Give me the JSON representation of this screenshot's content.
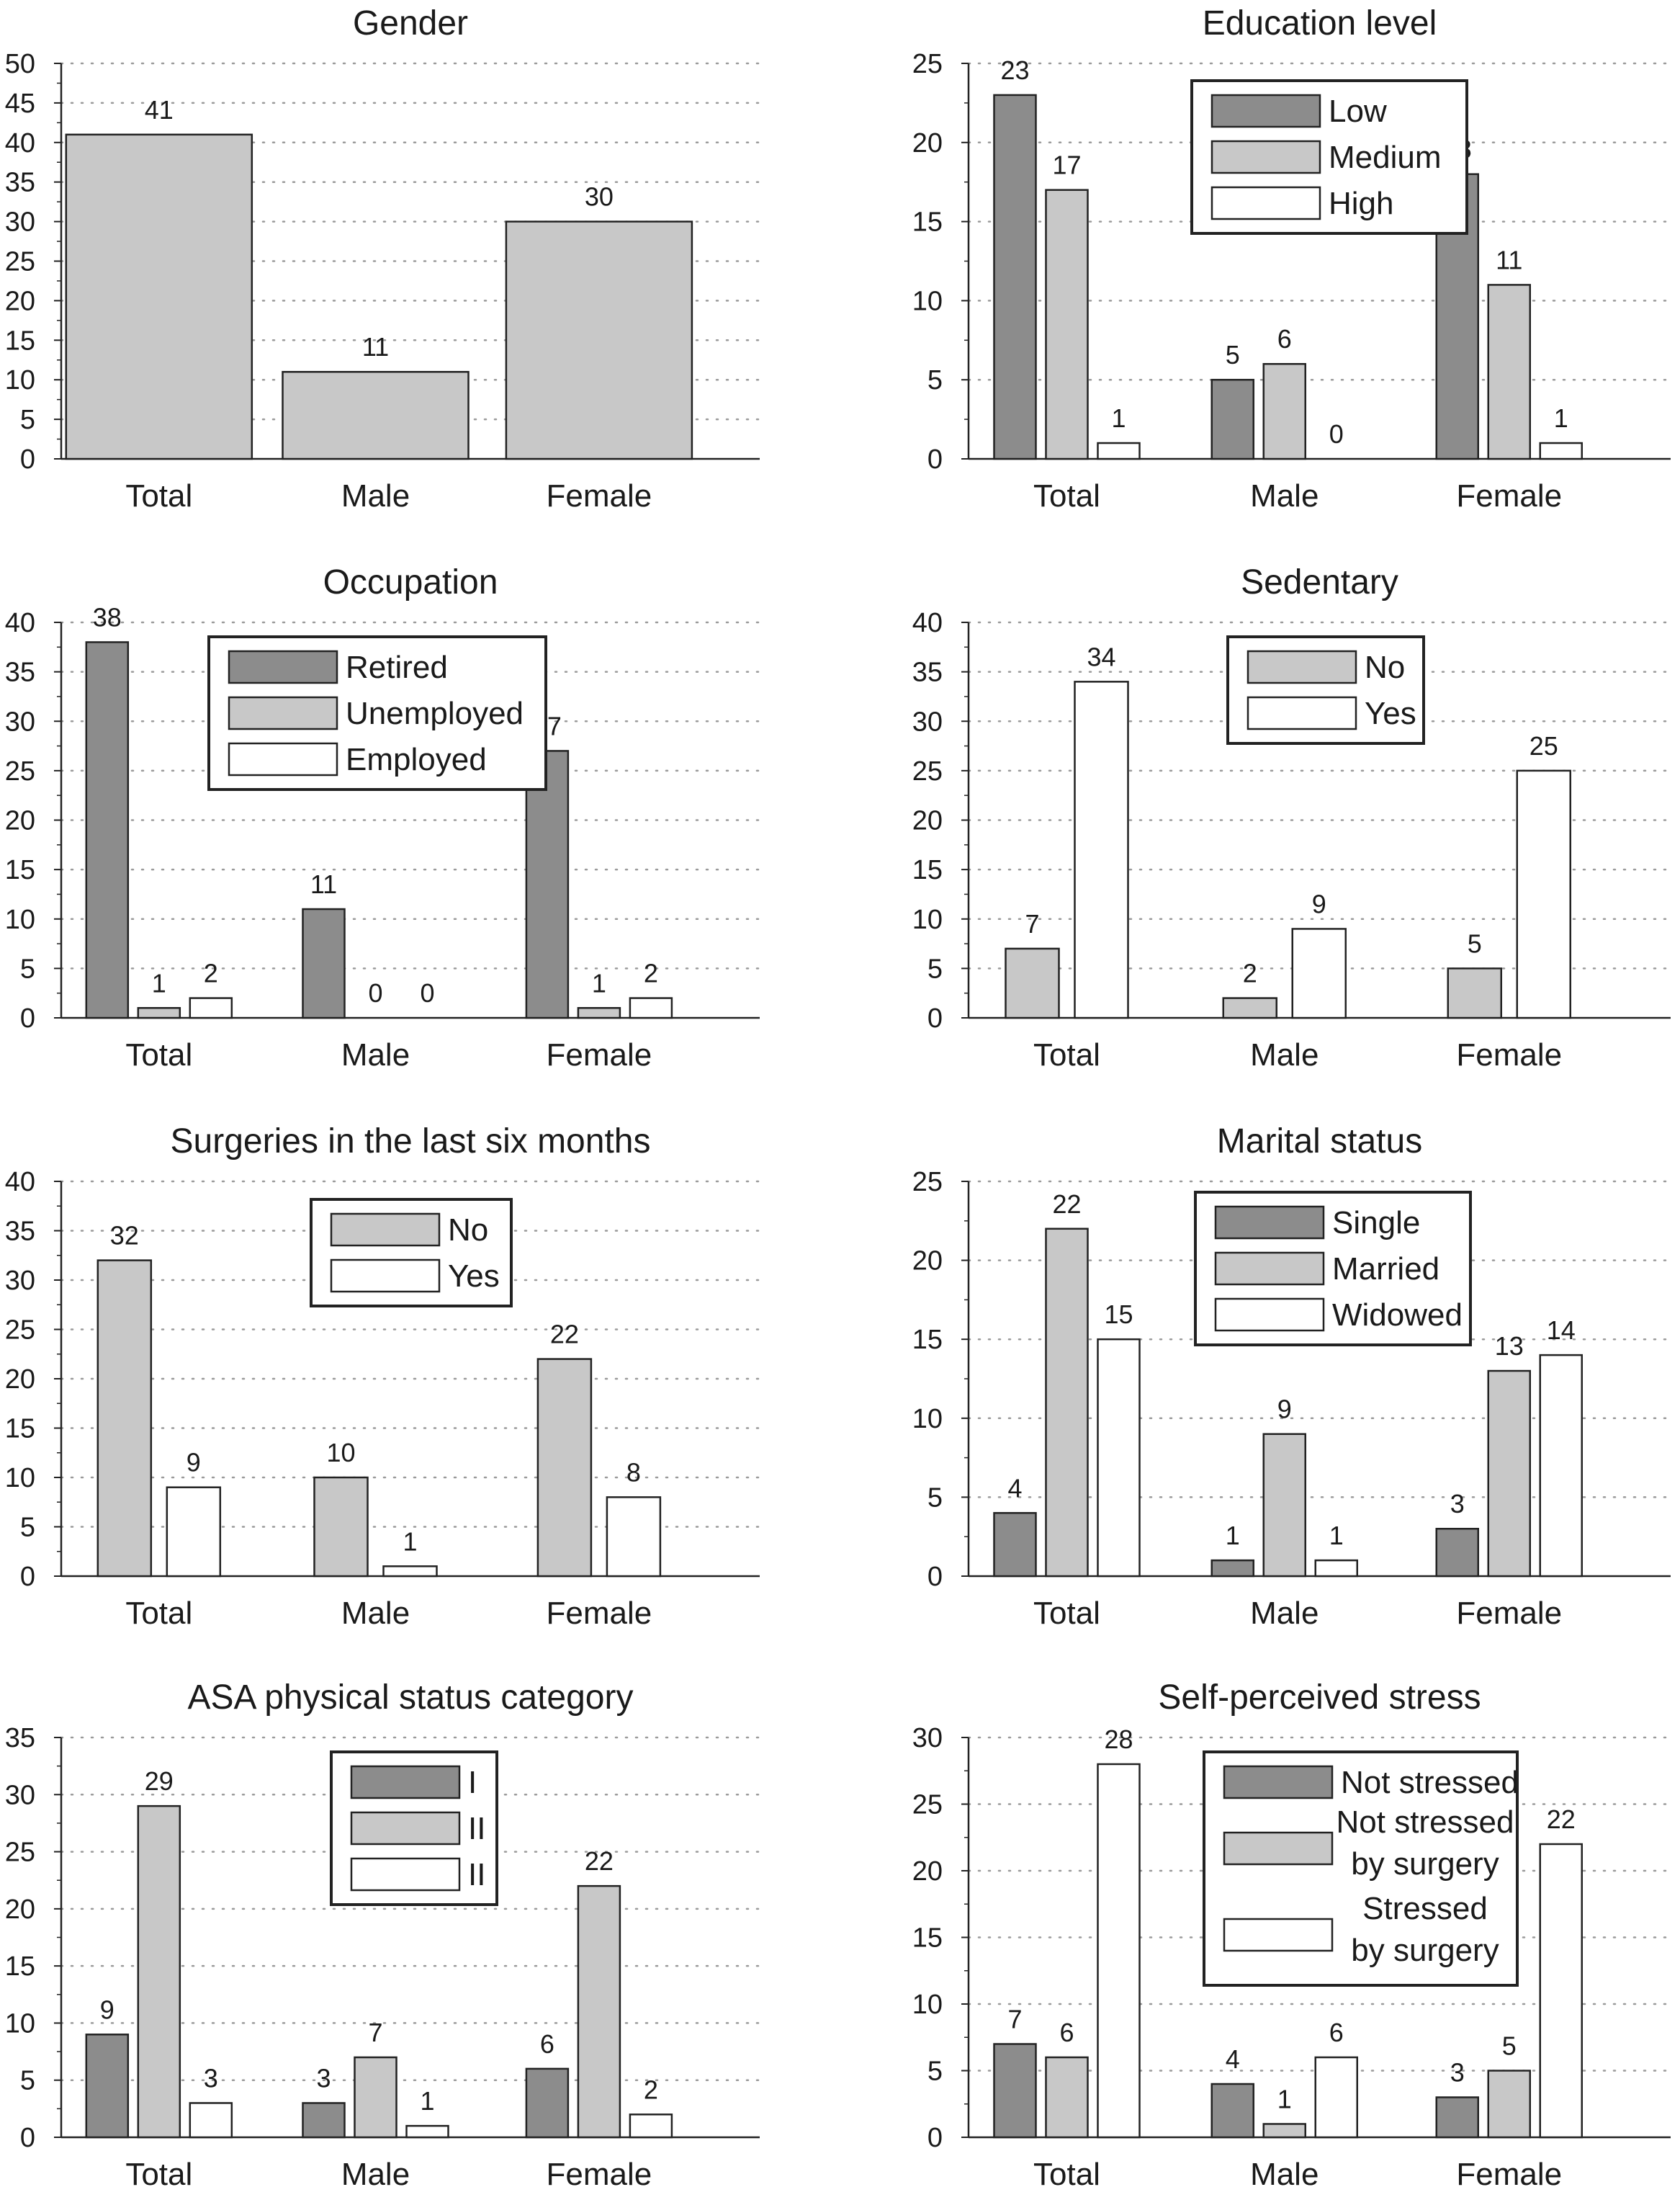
{
  "colors": {
    "dark": "#8c8c8c",
    "medium": "#c8c8c8",
    "white": "#ffffff",
    "stroke": "#222222",
    "grid": "#9a9a9a"
  },
  "chart_data": [
    {
      "type": "bar",
      "title": "Gender",
      "categories": [
        "Total",
        "Male",
        "Female"
      ],
      "ylim": [
        0,
        50
      ],
      "yticks": [
        0,
        5,
        10,
        15,
        20,
        25,
        30,
        35,
        40,
        45,
        50
      ],
      "grid": true,
      "legend": "none",
      "series": [
        {
          "values": [
            41,
            11,
            30
          ],
          "color": "medium"
        }
      ]
    },
    {
      "type": "bar",
      "title": "Education level",
      "categories": [
        "Total",
        "Male",
        "Female"
      ],
      "ylim": [
        0,
        25
      ],
      "yticks": [
        0,
        5,
        10,
        15,
        20,
        25
      ],
      "grid": true,
      "legend": "top-center",
      "series": [
        {
          "name": "Low",
          "values": [
            23,
            5,
            18
          ],
          "color": "dark"
        },
        {
          "name": "Medium",
          "values": [
            17,
            6,
            11
          ],
          "color": "medium"
        },
        {
          "name": "High",
          "values": [
            1,
            0,
            1
          ],
          "color": "white"
        }
      ]
    },
    {
      "type": "bar",
      "title": "Occupation",
      "categories": [
        "Total",
        "Male",
        "Female"
      ],
      "ylim": [
        0,
        40
      ],
      "yticks": [
        0,
        5,
        10,
        15,
        20,
        25,
        30,
        35,
        40
      ],
      "grid": true,
      "legend": "top-center",
      "series": [
        {
          "name": "Retired",
          "values": [
            38,
            11,
            27
          ],
          "color": "dark"
        },
        {
          "name": "Unemployed",
          "values": [
            1,
            0,
            1
          ],
          "color": "medium"
        },
        {
          "name": "Employed",
          "values": [
            2,
            0,
            2
          ],
          "color": "white"
        }
      ]
    },
    {
      "type": "bar",
      "title": "Sedentary",
      "categories": [
        "Total",
        "Male",
        "Female"
      ],
      "ylim": [
        0,
        40
      ],
      "yticks": [
        0,
        5,
        10,
        15,
        20,
        25,
        30,
        35,
        40
      ],
      "grid": true,
      "legend": "top-center",
      "series": [
        {
          "name": "No",
          "values": [
            7,
            2,
            5
          ],
          "color": "medium"
        },
        {
          "name": "Yes",
          "values": [
            34,
            9,
            25
          ],
          "color": "white"
        }
      ]
    },
    {
      "type": "bar",
      "title": "Surgeries in the last six months",
      "categories": [
        "Total",
        "Male",
        "Female"
      ],
      "ylim": [
        0,
        40
      ],
      "yticks": [
        0,
        5,
        10,
        15,
        20,
        25,
        30,
        35,
        40
      ],
      "grid": true,
      "legend": "top-center",
      "series": [
        {
          "name": "No",
          "values": [
            32,
            10,
            22
          ],
          "color": "medium"
        },
        {
          "name": "Yes",
          "values": [
            9,
            1,
            8
          ],
          "color": "white"
        }
      ]
    },
    {
      "type": "bar",
      "title": "Marital status",
      "categories": [
        "Total",
        "Male",
        "Female"
      ],
      "ylim": [
        0,
        25
      ],
      "yticks": [
        0,
        5,
        10,
        15,
        20,
        25
      ],
      "grid": true,
      "legend": "top-center",
      "series": [
        {
          "name": "Single",
          "values": [
            4,
            1,
            3
          ],
          "color": "dark"
        },
        {
          "name": "Married",
          "values": [
            22,
            9,
            13
          ],
          "color": "medium"
        },
        {
          "name": "Widowed",
          "values": [
            15,
            1,
            14
          ],
          "color": "white"
        }
      ]
    },
    {
      "type": "bar",
      "title": "ASA physical status category",
      "categories": [
        "Total",
        "Male",
        "Female"
      ],
      "ylim": [
        0,
        35
      ],
      "yticks": [
        0,
        5,
        10,
        15,
        20,
        25,
        30,
        35
      ],
      "grid": true,
      "legend": "top-center",
      "series": [
        {
          "name": "I",
          "values": [
            9,
            3,
            6
          ],
          "color": "dark"
        },
        {
          "name": "II",
          "values": [
            29,
            7,
            22
          ],
          "color": "medium"
        },
        {
          "name": "II",
          "values": [
            3,
            1,
            2
          ],
          "color": "white"
        }
      ]
    },
    {
      "type": "bar",
      "title": "Self-perceived stress",
      "categories": [
        "Total",
        "Male",
        "Female"
      ],
      "ylim": [
        0,
        30
      ],
      "yticks": [
        0,
        5,
        10,
        15,
        20,
        25,
        30
      ],
      "grid": true,
      "legend": "top-center",
      "series": [
        {
          "name": [
            "Not stressed"
          ],
          "values": [
            7,
            4,
            3
          ],
          "color": "dark"
        },
        {
          "name": [
            "Not stressed",
            "by surgery"
          ],
          "values": [
            6,
            1,
            5
          ],
          "color": "medium"
        },
        {
          "name": [
            "Stressed",
            "by surgery"
          ],
          "values": [
            28,
            6,
            22
          ],
          "color": "white"
        }
      ]
    }
  ]
}
